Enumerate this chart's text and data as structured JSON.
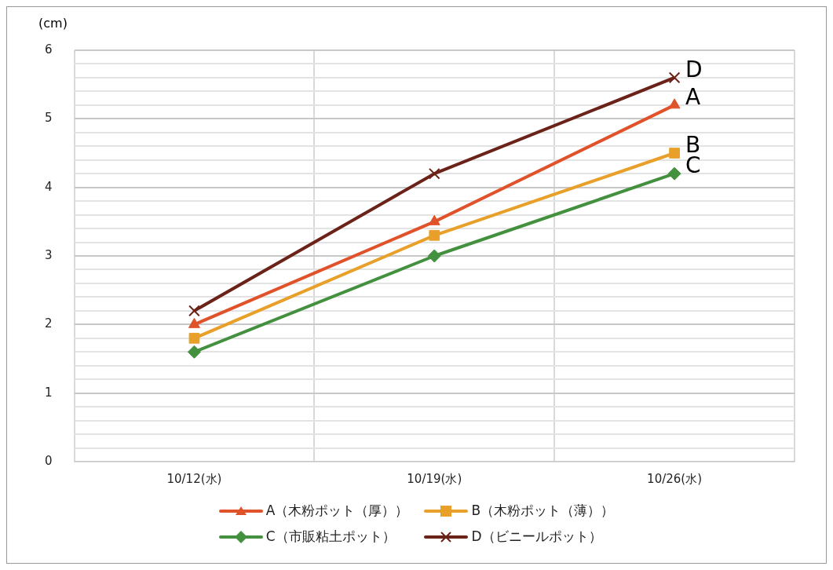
{
  "chart_data": {
    "type": "line",
    "ylabel": "(cm)",
    "categories": [
      "10/12(水)",
      "10/19(水)",
      "10/26(水)"
    ],
    "series": [
      {
        "name": "A（木粉ポット（厚））",
        "color": "#e0522a",
        "marker": "triangle",
        "values": [
          2.0,
          3.5,
          5.2
        ]
      },
      {
        "name": "B（木粉ポット（薄））",
        "color": "#e8a02a",
        "marker": "square",
        "values": [
          1.8,
          3.3,
          4.5
        ]
      },
      {
        "name": "C（市販粘土ポット）",
        "color": "#43913f",
        "marker": "diamond",
        "values": [
          1.6,
          3.0,
          4.2
        ]
      },
      {
        "name": "D（ビニールポット）",
        "color": "#6b2218",
        "marker": "cross",
        "values": [
          2.2,
          4.2,
          5.6
        ]
      }
    ],
    "ylim": [
      0,
      6
    ],
    "yticks": [
      0,
      {
        "value": 0.2,
        "label": null
      },
      {
        "value": 0.4,
        "label": null
      },
      {
        "value": 0.6,
        "label": null
      },
      {
        "value": 0.8,
        "label": null
      },
      1,
      {
        "value": 1.2,
        "label": null
      },
      {
        "value": 1.4,
        "label": null
      },
      {
        "value": 1.6,
        "label": null
      },
      {
        "value": 1.8,
        "label": null
      },
      2,
      {
        "value": 2.2,
        "label": null
      },
      {
        "value": 2.4,
        "label": null
      },
      {
        "value": 2.6,
        "label": null
      },
      {
        "value": 2.8,
        "label": null
      },
      3,
      {
        "value": 3.2,
        "label": null
      },
      {
        "value": 3.4,
        "label": null
      },
      {
        "value": 3.6,
        "label": null
      },
      {
        "value": 3.8,
        "label": null
      },
      4,
      {
        "value": 4.2,
        "label": null
      },
      {
        "value": 4.4,
        "label": null
      },
      {
        "value": 4.6,
        "label": null
      },
      {
        "value": 4.8,
        "label": null
      },
      5,
      {
        "value": 5.2,
        "label": null
      },
      {
        "value": 5.4,
        "label": null
      },
      {
        "value": 5.6,
        "label": null
      },
      {
        "value": 5.8,
        "label": null
      },
      6
    ],
    "annotations": [
      {
        "text": "D",
        "x": "10/26(水)",
        "y": 5.6
      },
      {
        "text": "A",
        "x": "10/26(水)",
        "y": 5.2
      },
      {
        "text": "B",
        "x": "10/26(水)",
        "y": 4.5
      },
      {
        "text": "C",
        "x": "10/26(水)",
        "y": 4.2
      }
    ],
    "grid": true,
    "legend": "bottom",
    "line_style": "solid"
  }
}
